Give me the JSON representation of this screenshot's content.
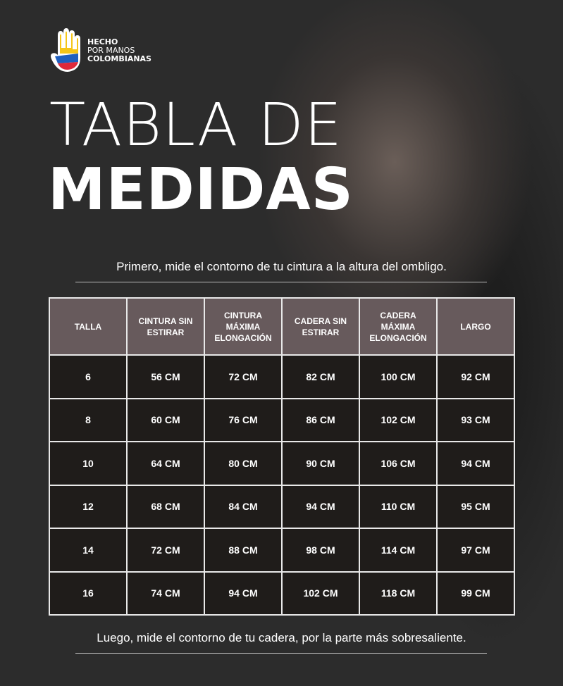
{
  "logo": {
    "line1": "HECHO",
    "line2": "POR MANOS",
    "line3": "COLOMBIANAS"
  },
  "title": {
    "line1": "TABLA DE",
    "line2": "MEDIDAS"
  },
  "note_top": "Primero, mide  el contorno de tu cintura a la altura del ombligo.",
  "note_bottom": "Luego, mide el contorno de tu cadera, por la parte más sobresaliente.",
  "table": {
    "headers": [
      "TALLA",
      "CINTURA SIN ESTIRAR",
      "CINTURA MÁXIMA ELONGACIÓN",
      "CADERA SIN ESTIRAR",
      "CADERA MÁXIMA ELONGACIÓN",
      "LARGO"
    ],
    "rows": [
      [
        "6",
        "56 CM",
        "72 CM",
        "82 CM",
        "100 CM",
        "92 CM"
      ],
      [
        "8",
        "60 CM",
        "76 CM",
        "86 CM",
        "102 CM",
        "93 CM"
      ],
      [
        "10",
        "64 CM",
        "80 CM",
        "90 CM",
        "106 CM",
        "94 CM"
      ],
      [
        "12",
        "68 CM",
        "84 CM",
        "94 CM",
        "110 CM",
        "95 CM"
      ],
      [
        "14",
        "72 CM",
        "88 CM",
        "98 CM",
        "114 CM",
        "97 CM"
      ],
      [
        "16",
        "74 CM",
        "94 CM",
        "102 CM",
        "118 CM",
        "99 CM"
      ]
    ]
  },
  "colors": {
    "header_bg": "#675a5c",
    "cell_bg": "#1f1c1a",
    "flag_yellow": "#f5c518",
    "flag_blue": "#1f5fbf",
    "flag_red": "#e0283a"
  }
}
